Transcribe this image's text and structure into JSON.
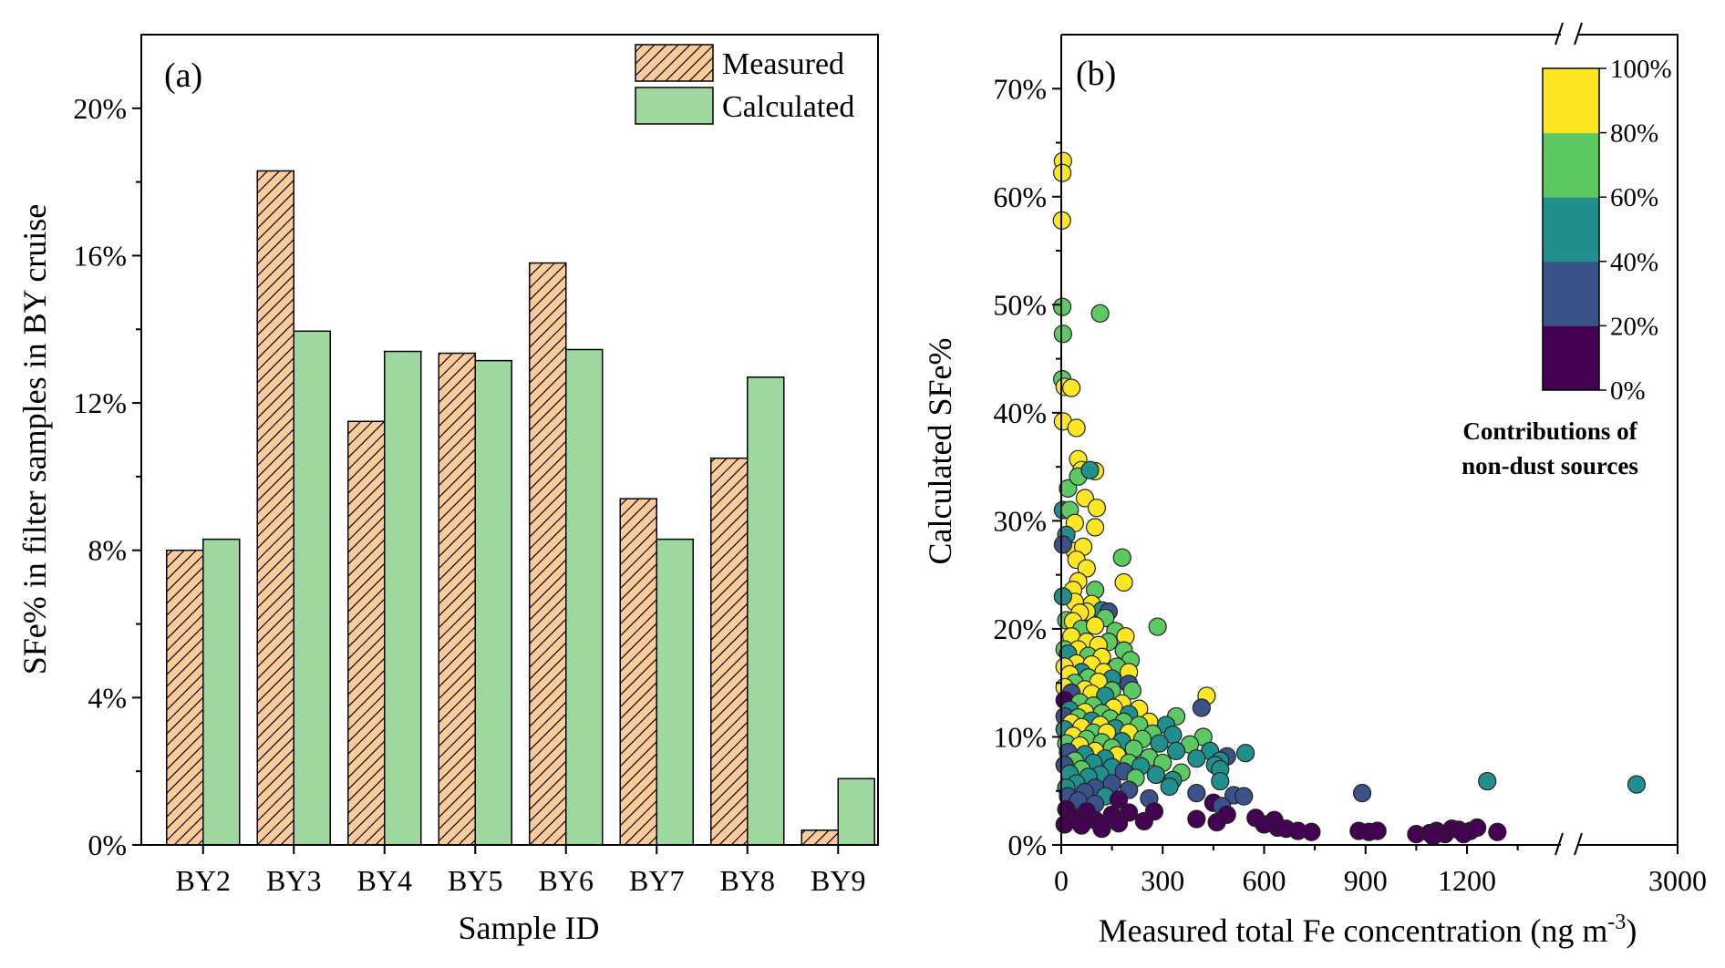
{
  "chart_data": [
    {
      "type": "bar",
      "panel_label": "(a)",
      "xlabel": "Sample ID",
      "ylabel": "SFe% in filter samples in BY cruise",
      "categories": [
        "BY2",
        "BY3",
        "BY4",
        "BY5",
        "BY6",
        "BY7",
        "BY8",
        "BY9"
      ],
      "ylim": [
        0,
        22
      ],
      "yticks": [
        0,
        4,
        8,
        12,
        16,
        20
      ],
      "ytick_labels": [
        "0%",
        "4%",
        "8%",
        "12%",
        "16%",
        "20%"
      ],
      "series": [
        {
          "name": "Measured",
          "values": [
            8.0,
            18.3,
            11.5,
            13.35,
            15.8,
            9.4,
            10.5,
            0.4
          ],
          "color": "#FDCB97",
          "hatch": true
        },
        {
          "name": "Calculated",
          "values": [
            8.3,
            13.95,
            13.4,
            13.15,
            13.45,
            8.3,
            12.7,
            1.8
          ],
          "color": "#9ED89E",
          "hatch": false
        }
      ],
      "legend_position": "top-right"
    },
    {
      "type": "scatter",
      "panel_label": "(b)",
      "xlabel": "Measured total Fe concentration (ng m",
      "xlabel_sup": "-3",
      "xlabel_end": ")",
      "ylabel": "Calculated SFe%",
      "xticks": [
        0,
        300,
        600,
        900,
        1200,
        3000
      ],
      "xtick_labels": [
        "0",
        "300",
        "600",
        "900",
        "1200",
        "3000"
      ],
      "x_axis_break": [
        1450,
        2700
      ],
      "ylim": [
        0,
        75
      ],
      "yticks": [
        0,
        10,
        20,
        30,
        40,
        50,
        60,
        70
      ],
      "ytick_labels": [
        "0%",
        "10%",
        "20%",
        "30%",
        "40%",
        "50%",
        "60%",
        "70%"
      ],
      "colorbar": {
        "title_line1": "Contributions of",
        "title_line2": "non-dust sources",
        "ticks": [
          "0%",
          "20%",
          "40%",
          "60%",
          "80%",
          "100%"
        ],
        "colors": [
          "#440154",
          "#3B528B",
          "#21908C",
          "#5DC963",
          "#FDE725"
        ]
      },
      "points": [
        [
          5,
          63.3,
          5
        ],
        [
          3,
          62.2,
          5
        ],
        [
          2,
          57.8,
          5
        ],
        [
          3,
          49.8,
          4
        ],
        [
          5,
          47.3,
          4
        ],
        [
          115,
          49.2,
          4
        ],
        [
          3,
          43.1,
          4
        ],
        [
          10,
          42.4,
          5
        ],
        [
          30,
          42.3,
          5
        ],
        [
          5,
          39.2,
          5
        ],
        [
          45,
          38.6,
          5
        ],
        [
          50,
          35.7,
          5
        ],
        [
          60,
          34.7,
          5
        ],
        [
          100,
          34.6,
          5
        ],
        [
          20,
          33.0,
          4
        ],
        [
          50,
          34.1,
          4
        ],
        [
          85,
          34.7,
          3
        ],
        [
          70,
          32.1,
          5
        ],
        [
          105,
          31.2,
          5
        ],
        [
          5,
          31.0,
          3
        ],
        [
          25,
          31.0,
          4
        ],
        [
          40,
          29.8,
          5
        ],
        [
          100,
          29.4,
          5
        ],
        [
          15,
          28.7,
          3
        ],
        [
          40,
          27.2,
          5
        ],
        [
          65,
          27.6,
          5
        ],
        [
          5,
          27.8,
          2
        ],
        [
          180,
          26.6,
          4
        ],
        [
          45,
          26.4,
          5
        ],
        [
          75,
          25.6,
          5
        ],
        [
          50,
          24.4,
          5
        ],
        [
          185,
          24.3,
          5
        ],
        [
          35,
          23.6,
          5
        ],
        [
          100,
          23.6,
          4
        ],
        [
          90,
          22.3,
          5
        ],
        [
          40,
          22.5,
          5
        ],
        [
          5,
          23.0,
          3
        ],
        [
          120,
          21.7,
          3
        ],
        [
          75,
          21.6,
          5
        ],
        [
          55,
          21.5,
          5
        ],
        [
          140,
          21.6,
          2
        ],
        [
          130,
          21.0,
          4
        ],
        [
          15,
          20.8,
          4
        ],
        [
          35,
          20.7,
          5
        ],
        [
          60,
          20.0,
          4
        ],
        [
          285,
          20.2,
          4
        ],
        [
          100,
          20.3,
          5
        ],
        [
          160,
          19.8,
          4
        ],
        [
          190,
          19.3,
          5
        ],
        [
          30,
          19.3,
          5
        ],
        [
          75,
          18.8,
          5
        ],
        [
          140,
          18.8,
          4
        ],
        [
          110,
          18.5,
          5
        ],
        [
          10,
          18.1,
          4
        ],
        [
          50,
          18.1,
          5
        ],
        [
          185,
          18.0,
          4
        ],
        [
          20,
          17.7,
          3
        ],
        [
          80,
          17.5,
          4
        ],
        [
          120,
          17.4,
          5
        ],
        [
          205,
          17.1,
          4
        ],
        [
          45,
          16.8,
          5
        ],
        [
          90,
          16.7,
          5
        ],
        [
          165,
          16.5,
          4
        ],
        [
          10,
          16.5,
          5
        ],
        [
          60,
          16.0,
          3
        ],
        [
          125,
          16.0,
          5
        ],
        [
          200,
          16.0,
          5
        ],
        [
          25,
          15.8,
          5
        ],
        [
          80,
          15.5,
          4
        ],
        [
          150,
          15.4,
          3
        ],
        [
          110,
          15.1,
          5
        ],
        [
          40,
          15.0,
          4
        ],
        [
          200,
          14.9,
          2
        ],
        [
          10,
          14.6,
          5
        ],
        [
          70,
          14.4,
          5
        ],
        [
          150,
          14.3,
          4
        ],
        [
          210,
          14.3,
          4
        ],
        [
          30,
          14.1,
          2
        ],
        [
          90,
          14.0,
          5
        ],
        [
          130,
          13.8,
          3
        ],
        [
          430,
          13.8,
          5
        ],
        [
          10,
          13.4,
          1
        ],
        [
          55,
          13.2,
          4
        ],
        [
          180,
          13.1,
          5
        ],
        [
          95,
          12.9,
          4
        ],
        [
          155,
          12.7,
          5
        ],
        [
          230,
          12.6,
          5
        ],
        [
          25,
          12.5,
          3
        ],
        [
          70,
          12.3,
          5
        ],
        [
          120,
          12.2,
          4
        ],
        [
          200,
          12.1,
          3
        ],
        [
          415,
          12.7,
          2
        ],
        [
          10,
          11.9,
          2
        ],
        [
          50,
          11.8,
          4
        ],
        [
          145,
          11.7,
          4
        ],
        [
          260,
          11.4,
          5
        ],
        [
          340,
          11.9,
          4
        ],
        [
          90,
          11.5,
          3
        ],
        [
          185,
          11.4,
          4
        ],
        [
          30,
          11.3,
          5
        ],
        [
          115,
          11.1,
          5
        ],
        [
          230,
          11.1,
          4
        ],
        [
          310,
          11.1,
          3
        ],
        [
          60,
          10.9,
          5
        ],
        [
          160,
          10.8,
          3
        ],
        [
          10,
          10.7,
          3
        ],
        [
          95,
          10.4,
          4
        ],
        [
          135,
          10.4,
          5
        ],
        [
          200,
          10.4,
          5
        ],
        [
          270,
          10.3,
          4
        ],
        [
          35,
          10.1,
          5
        ],
        [
          330,
          10.2,
          3
        ],
        [
          420,
          10.0,
          4
        ],
        [
          75,
          9.8,
          4
        ],
        [
          180,
          9.6,
          3
        ],
        [
          240,
          9.8,
          4
        ],
        [
          120,
          9.5,
          4
        ],
        [
          15,
          9.4,
          4
        ],
        [
          290,
          9.4,
          3
        ],
        [
          380,
          9.3,
          4
        ],
        [
          55,
          9.2,
          5
        ],
        [
          150,
          9.0,
          4
        ],
        [
          215,
          8.9,
          4
        ],
        [
          100,
          8.7,
          5
        ],
        [
          340,
          8.7,
          3
        ],
        [
          440,
          8.7,
          3
        ],
        [
          20,
          8.6,
          2
        ],
        [
          490,
          8.2,
          2
        ],
        [
          545,
          8.5,
          3
        ],
        [
          70,
          8.4,
          3
        ],
        [
          165,
          8.3,
          5
        ],
        [
          260,
          8.1,
          4
        ],
        [
          130,
          8.0,
          3
        ],
        [
          400,
          8.0,
          3
        ],
        [
          470,
          7.8,
          3
        ],
        [
          40,
          7.8,
          4
        ],
        [
          200,
          7.6,
          4
        ],
        [
          300,
          7.6,
          4
        ],
        [
          10,
          7.4,
          2
        ],
        [
          95,
          7.6,
          3
        ],
        [
          150,
          7.2,
          3
        ],
        [
          235,
          7.3,
          3
        ],
        [
          455,
          7.4,
          3
        ],
        [
          60,
          7.0,
          4
        ],
        [
          470,
          7.0,
          3
        ],
        [
          185,
          6.8,
          2
        ],
        [
          355,
          6.7,
          4
        ],
        [
          25,
          6.6,
          3
        ],
        [
          115,
          6.5,
          3
        ],
        [
          280,
          6.5,
          3
        ],
        [
          80,
          6.3,
          3
        ],
        [
          220,
          6.2,
          4
        ],
        [
          330,
          6.0,
          3
        ],
        [
          470,
          5.9,
          3
        ],
        [
          1260,
          5.9,
          3
        ],
        [
          2850,
          5.6,
          3
        ],
        [
          45,
          5.7,
          3
        ],
        [
          150,
          5.7,
          2
        ],
        [
          320,
          5.4,
          3
        ],
        [
          15,
          5.3,
          3
        ],
        [
          100,
          5.3,
          2
        ],
        [
          200,
          5.1,
          2
        ],
        [
          70,
          4.9,
          2
        ],
        [
          890,
          4.8,
          2
        ],
        [
          400,
          4.8,
          2
        ],
        [
          510,
          4.6,
          2
        ],
        [
          540,
          4.5,
          2
        ],
        [
          130,
          4.5,
          3
        ],
        [
          20,
          4.5,
          2
        ],
        [
          260,
          4.3,
          2
        ],
        [
          170,
          4.2,
          1
        ],
        [
          50,
          4.1,
          2
        ],
        [
          100,
          3.8,
          2
        ],
        [
          450,
          3.9,
          1
        ],
        [
          475,
          3.6,
          2
        ],
        [
          15,
          3.3,
          1
        ],
        [
          275,
          3.1,
          1
        ],
        [
          75,
          3.1,
          1
        ],
        [
          200,
          3.0,
          1
        ],
        [
          150,
          2.8,
          1
        ],
        [
          490,
          2.8,
          1
        ],
        [
          30,
          2.6,
          1
        ],
        [
          400,
          2.4,
          1
        ],
        [
          100,
          2.3,
          1
        ],
        [
          245,
          2.2,
          1
        ],
        [
          575,
          2.5,
          1
        ],
        [
          630,
          2.3,
          1
        ],
        [
          460,
          2.1,
          1
        ],
        [
          600,
          1.9,
          1
        ],
        [
          10,
          1.9,
          1
        ],
        [
          170,
          2.0,
          1
        ],
        [
          60,
          1.8,
          1
        ],
        [
          640,
          1.6,
          1
        ],
        [
          665,
          1.5,
          1
        ],
        [
          120,
          1.5,
          1
        ],
        [
          700,
          1.3,
          1
        ],
        [
          740,
          1.2,
          1
        ],
        [
          880,
          1.3,
          1
        ],
        [
          910,
          1.2,
          1
        ],
        [
          935,
          1.3,
          1
        ],
        [
          1050,
          1.0,
          1
        ],
        [
          1090,
          1.1,
          1
        ],
        [
          1110,
          1.3,
          1
        ],
        [
          1135,
          1.0,
          1
        ],
        [
          1155,
          1.5,
          1
        ],
        [
          1175,
          1.4,
          1
        ],
        [
          1210,
          1.3,
          1
        ],
        [
          1230,
          1.6,
          1
        ],
        [
          1290,
          1.2,
          1
        ],
        [
          1190,
          1.0,
          1
        ],
        [
          1100,
          0.8,
          1
        ]
      ]
    }
  ]
}
